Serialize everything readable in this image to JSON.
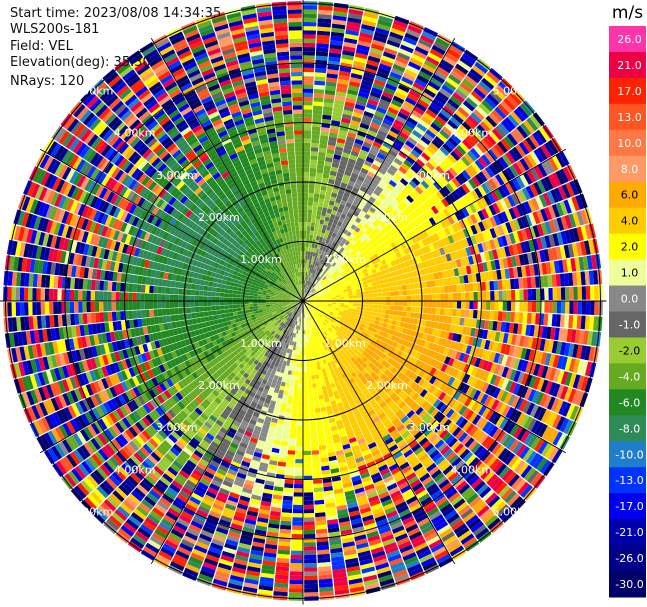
{
  "header": {
    "start_time": "Start time: 2023/08/08 14:34:35",
    "station": "WLS200s-181",
    "field": "Field: VEL",
    "elevation": "Elevation(deg): 35.30",
    "nrays": "NRays: 120"
  },
  "chart_data": {
    "type": "ppi-polar-heatmap",
    "field": "VEL",
    "units": "m/s",
    "nrays": 120,
    "elevation_deg": 35.3,
    "range_rings_km": [
      1.0,
      2.0,
      3.0,
      4.0,
      5.0
    ],
    "ring_labels": [
      "1.00km",
      "2.00km",
      "3.00km",
      "4.00km",
      "5.00km"
    ],
    "azimuth_spokes_deg": [
      0,
      30,
      60,
      90,
      120,
      150,
      180,
      210,
      240,
      270,
      300,
      330
    ],
    "max_range_km": 5.1,
    "colorbar": {
      "title": "m/s",
      "ticks": [
        "26.0",
        "21.0",
        "17.0",
        "13.0",
        "10.0",
        "8.0",
        "6.0",
        "4.0",
        "2.0",
        "1.0",
        "0.0",
        "-1.0",
        "-2.0",
        "-4.0",
        "-6.0",
        "-8.0",
        "-10.0",
        "-13.0",
        "-17.0",
        "-21.0",
        "-26.0",
        "-30.0"
      ],
      "colors": [
        "#ff33aa",
        "#ee0044",
        "#ff2200",
        "#ff5522",
        "#ff7744",
        "#ff9966",
        "#ffaa00",
        "#ffcc00",
        "#ffff00",
        "#eeff99",
        "#888888",
        "#666666",
        "#99cc33",
        "#66aa22",
        "#228822",
        "#2e8b57",
        "#1e7fc8",
        "#0033ff",
        "#0000ee",
        "#0000aa",
        "#000088",
        "#000066"
      ]
    },
    "velocity_pattern": {
      "max_speed_ms": 6.5,
      "toward_direction_deg": 295,
      "noise_onset_km": 2.3,
      "noise_full_km": 3.8
    }
  }
}
